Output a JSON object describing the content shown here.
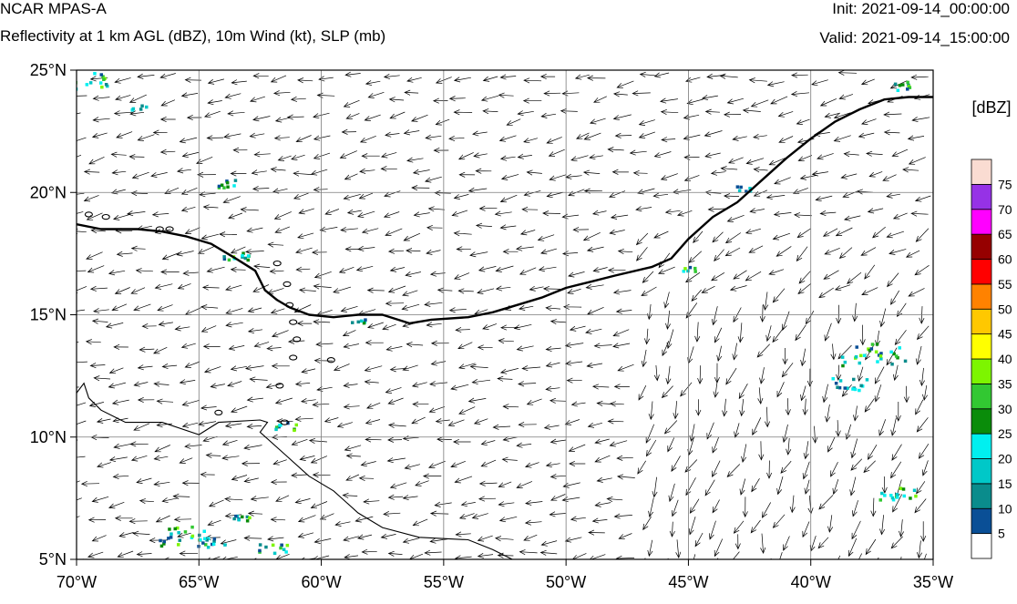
{
  "header": {
    "model": "NCAR MPAS-A",
    "product": "Reflectivity at 1 km AGL (dBZ), 10m Wind (kt), SLP (mb)",
    "init": "Init: 2021-09-14_00:00:00",
    "valid": "Valid: 2021-09-14_15:00:00"
  },
  "map": {
    "lon_range": [
      -70,
      -35
    ],
    "lat_range": [
      5,
      25
    ],
    "lon_ticks": [
      {
        "value": -70,
        "label": "70°W"
      },
      {
        "value": -65,
        "label": "65°W"
      },
      {
        "value": -60,
        "label": "60°W"
      },
      {
        "value": -55,
        "label": "55°W"
      },
      {
        "value": -50,
        "label": "50°W"
      },
      {
        "value": -45,
        "label": "45°W"
      },
      {
        "value": -40,
        "label": "40°W"
      },
      {
        "value": -35,
        "label": "35°W"
      }
    ],
    "lat_ticks": [
      {
        "value": 5,
        "label": "5°N"
      },
      {
        "value": 10,
        "label": "10°N"
      },
      {
        "value": 15,
        "label": "15°N"
      },
      {
        "value": 20,
        "label": "20°N"
      },
      {
        "value": 25,
        "label": "25°N"
      }
    ],
    "grid": true,
    "pressure_contour": [
      [
        -70,
        18.7
      ],
      [
        -69,
        18.5
      ],
      [
        -67.5,
        18.5
      ],
      [
        -66.5,
        18.4
      ],
      [
        -65.5,
        18.2
      ],
      [
        -64.5,
        17.9
      ],
      [
        -63.5,
        17.3
      ],
      [
        -62.7,
        16.8
      ],
      [
        -62.3,
        16.0
      ],
      [
        -61.8,
        15.6
      ],
      [
        -61.3,
        15.3
      ],
      [
        -60.5,
        15.0
      ],
      [
        -59.5,
        14.9
      ],
      [
        -58.5,
        15.0
      ],
      [
        -57.5,
        15.0
      ],
      [
        -56.4,
        14.65
      ],
      [
        -55.5,
        14.8
      ],
      [
        -54,
        14.9
      ],
      [
        -53,
        15.1
      ],
      [
        -52,
        15.4
      ],
      [
        -51,
        15.7
      ],
      [
        -50,
        16.1
      ],
      [
        -49,
        16.35
      ],
      [
        -48,
        16.6
      ],
      [
        -46.5,
        16.95
      ],
      [
        -45.7,
        17.3
      ],
      [
        -45,
        18.1
      ],
      [
        -44,
        19.0
      ],
      [
        -43,
        19.6
      ],
      [
        -42,
        20.5
      ],
      [
        -41,
        21.4
      ],
      [
        -40,
        22.2
      ],
      [
        -39,
        22.9
      ],
      [
        -38,
        23.4
      ],
      [
        -37,
        23.8
      ],
      [
        -36,
        23.9
      ],
      [
        -35,
        23.9
      ]
    ],
    "islands": [
      [
        -69.5,
        19.1
      ],
      [
        -68.8,
        19.0
      ],
      [
        -66.6,
        18.5
      ],
      [
        -66.2,
        18.5
      ],
      [
        -61.8,
        17.1
      ],
      [
        -61.4,
        16.25
      ],
      [
        -61.3,
        15.4
      ],
      [
        -61.15,
        14.7
      ],
      [
        -61.0,
        14.0
      ],
      [
        -61.15,
        13.25
      ],
      [
        -59.6,
        13.15
      ],
      [
        -61.7,
        12.1
      ],
      [
        -61.5,
        10.6
      ],
      [
        -64.2,
        11.0
      ]
    ],
    "coastline": [
      [
        -70,
        11.8
      ],
      [
        -69.7,
        12.2
      ],
      [
        -69.5,
        11.6
      ],
      [
        -69,
        11.1
      ],
      [
        -68,
        10.6
      ],
      [
        -66.5,
        10.6
      ],
      [
        -65,
        10.1
      ],
      [
        -64.2,
        10.6
      ],
      [
        -62.5,
        10.7
      ],
      [
        -62.2,
        10.6
      ],
      [
        -62.5,
        10.2
      ],
      [
        -61.5,
        9.3
      ],
      [
        -60.5,
        8.4
      ],
      [
        -59.5,
        7.8
      ],
      [
        -58.5,
        6.9
      ],
      [
        -57.5,
        6.3
      ],
      [
        -56,
        5.9
      ],
      [
        -54,
        5.8
      ],
      [
        -53,
        5.4
      ],
      [
        -52.2,
        5.0
      ]
    ]
  },
  "colorbar": {
    "unit": "[dBZ]",
    "levels": [
      "5",
      "10",
      "15",
      "20",
      "25",
      "30",
      "35",
      "40",
      "45",
      "50",
      "55",
      "60",
      "65",
      "70",
      "75"
    ],
    "colors": [
      "#ffffff",
      "#0a4f96",
      "#0a8c8c",
      "#00c8c8",
      "#00f0f0",
      "#0a8c0a",
      "#32c832",
      "#7df500",
      "#ffff00",
      "#ffc800",
      "#ff8200",
      "#ff0000",
      "#960000",
      "#ff00ff",
      "#9632e6",
      "#fadcd2"
    ]
  }
}
